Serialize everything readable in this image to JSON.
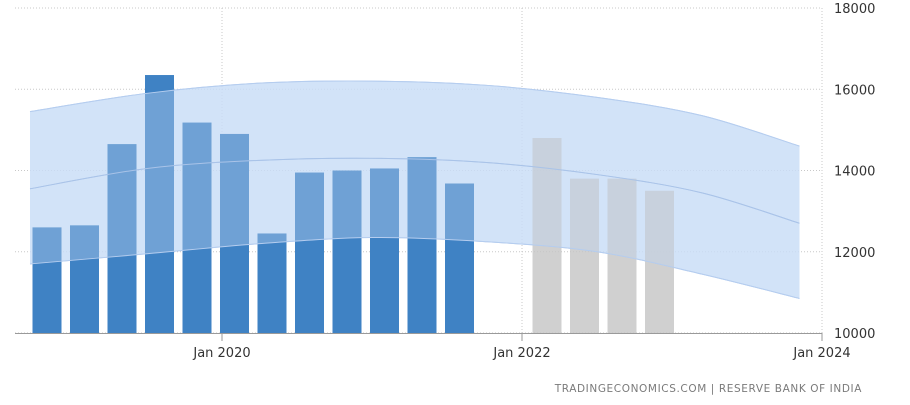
{
  "chart_data": {
    "type": "bar",
    "x_ticks": [
      {
        "label": "Jan 2020",
        "date": 2020.0
      },
      {
        "label": "Jan 2022",
        "date": 2022.0
      },
      {
        "label": "Jan 2024",
        "date": 2024.0
      }
    ],
    "y_ticks": [
      10000,
      12000,
      14000,
      16000,
      18000
    ],
    "xlim": [
      2018.62,
      2024.0
    ],
    "ylim": [
      10000,
      18000
    ],
    "grid": true,
    "series": [
      {
        "kind": "actual",
        "color": "#3f82c4",
        "points": [
          {
            "date": "2018-11",
            "value": 12600
          },
          {
            "date": "2019-02",
            "value": 12650
          },
          {
            "date": "2019-05",
            "value": 14650
          },
          {
            "date": "2019-08",
            "value": 16350
          },
          {
            "date": "2019-11",
            "value": 15180
          },
          {
            "date": "2020-02",
            "value": 14900
          },
          {
            "date": "2020-05",
            "value": 12450
          },
          {
            "date": "2020-08",
            "value": 13950
          },
          {
            "date": "2020-11",
            "value": 14000
          },
          {
            "date": "2021-02",
            "value": 14050
          },
          {
            "date": "2021-05",
            "value": 14330
          },
          {
            "date": "2021-08",
            "value": 13680
          }
        ]
      },
      {
        "kind": "forecast",
        "color": "#c4c4c4",
        "points": [
          {
            "date": "2022-03",
            "value": 14800
          },
          {
            "date": "2022-06",
            "value": 13800
          },
          {
            "date": "2022-09",
            "value": 13800
          },
          {
            "date": "2022-12",
            "value": 13500
          }
        ]
      }
    ],
    "band": {
      "color": "#c9ddf7",
      "x": [
        2018.72,
        2019.5,
        2020.25,
        2021.0,
        2021.75,
        2022.5,
        2023.2,
        2023.85
      ],
      "upper": [
        15450,
        15900,
        16150,
        16200,
        16100,
        15800,
        15350,
        14600
      ],
      "lower": [
        11700,
        11950,
        12200,
        12350,
        12250,
        12000,
        11450,
        10850
      ],
      "center": [
        13550,
        14050,
        14250,
        14300,
        14200,
        13900,
        13450,
        12700
      ]
    }
  },
  "source": "TRADINGECONOMICS.COM  |  RESERVE BANK OF INDIA"
}
